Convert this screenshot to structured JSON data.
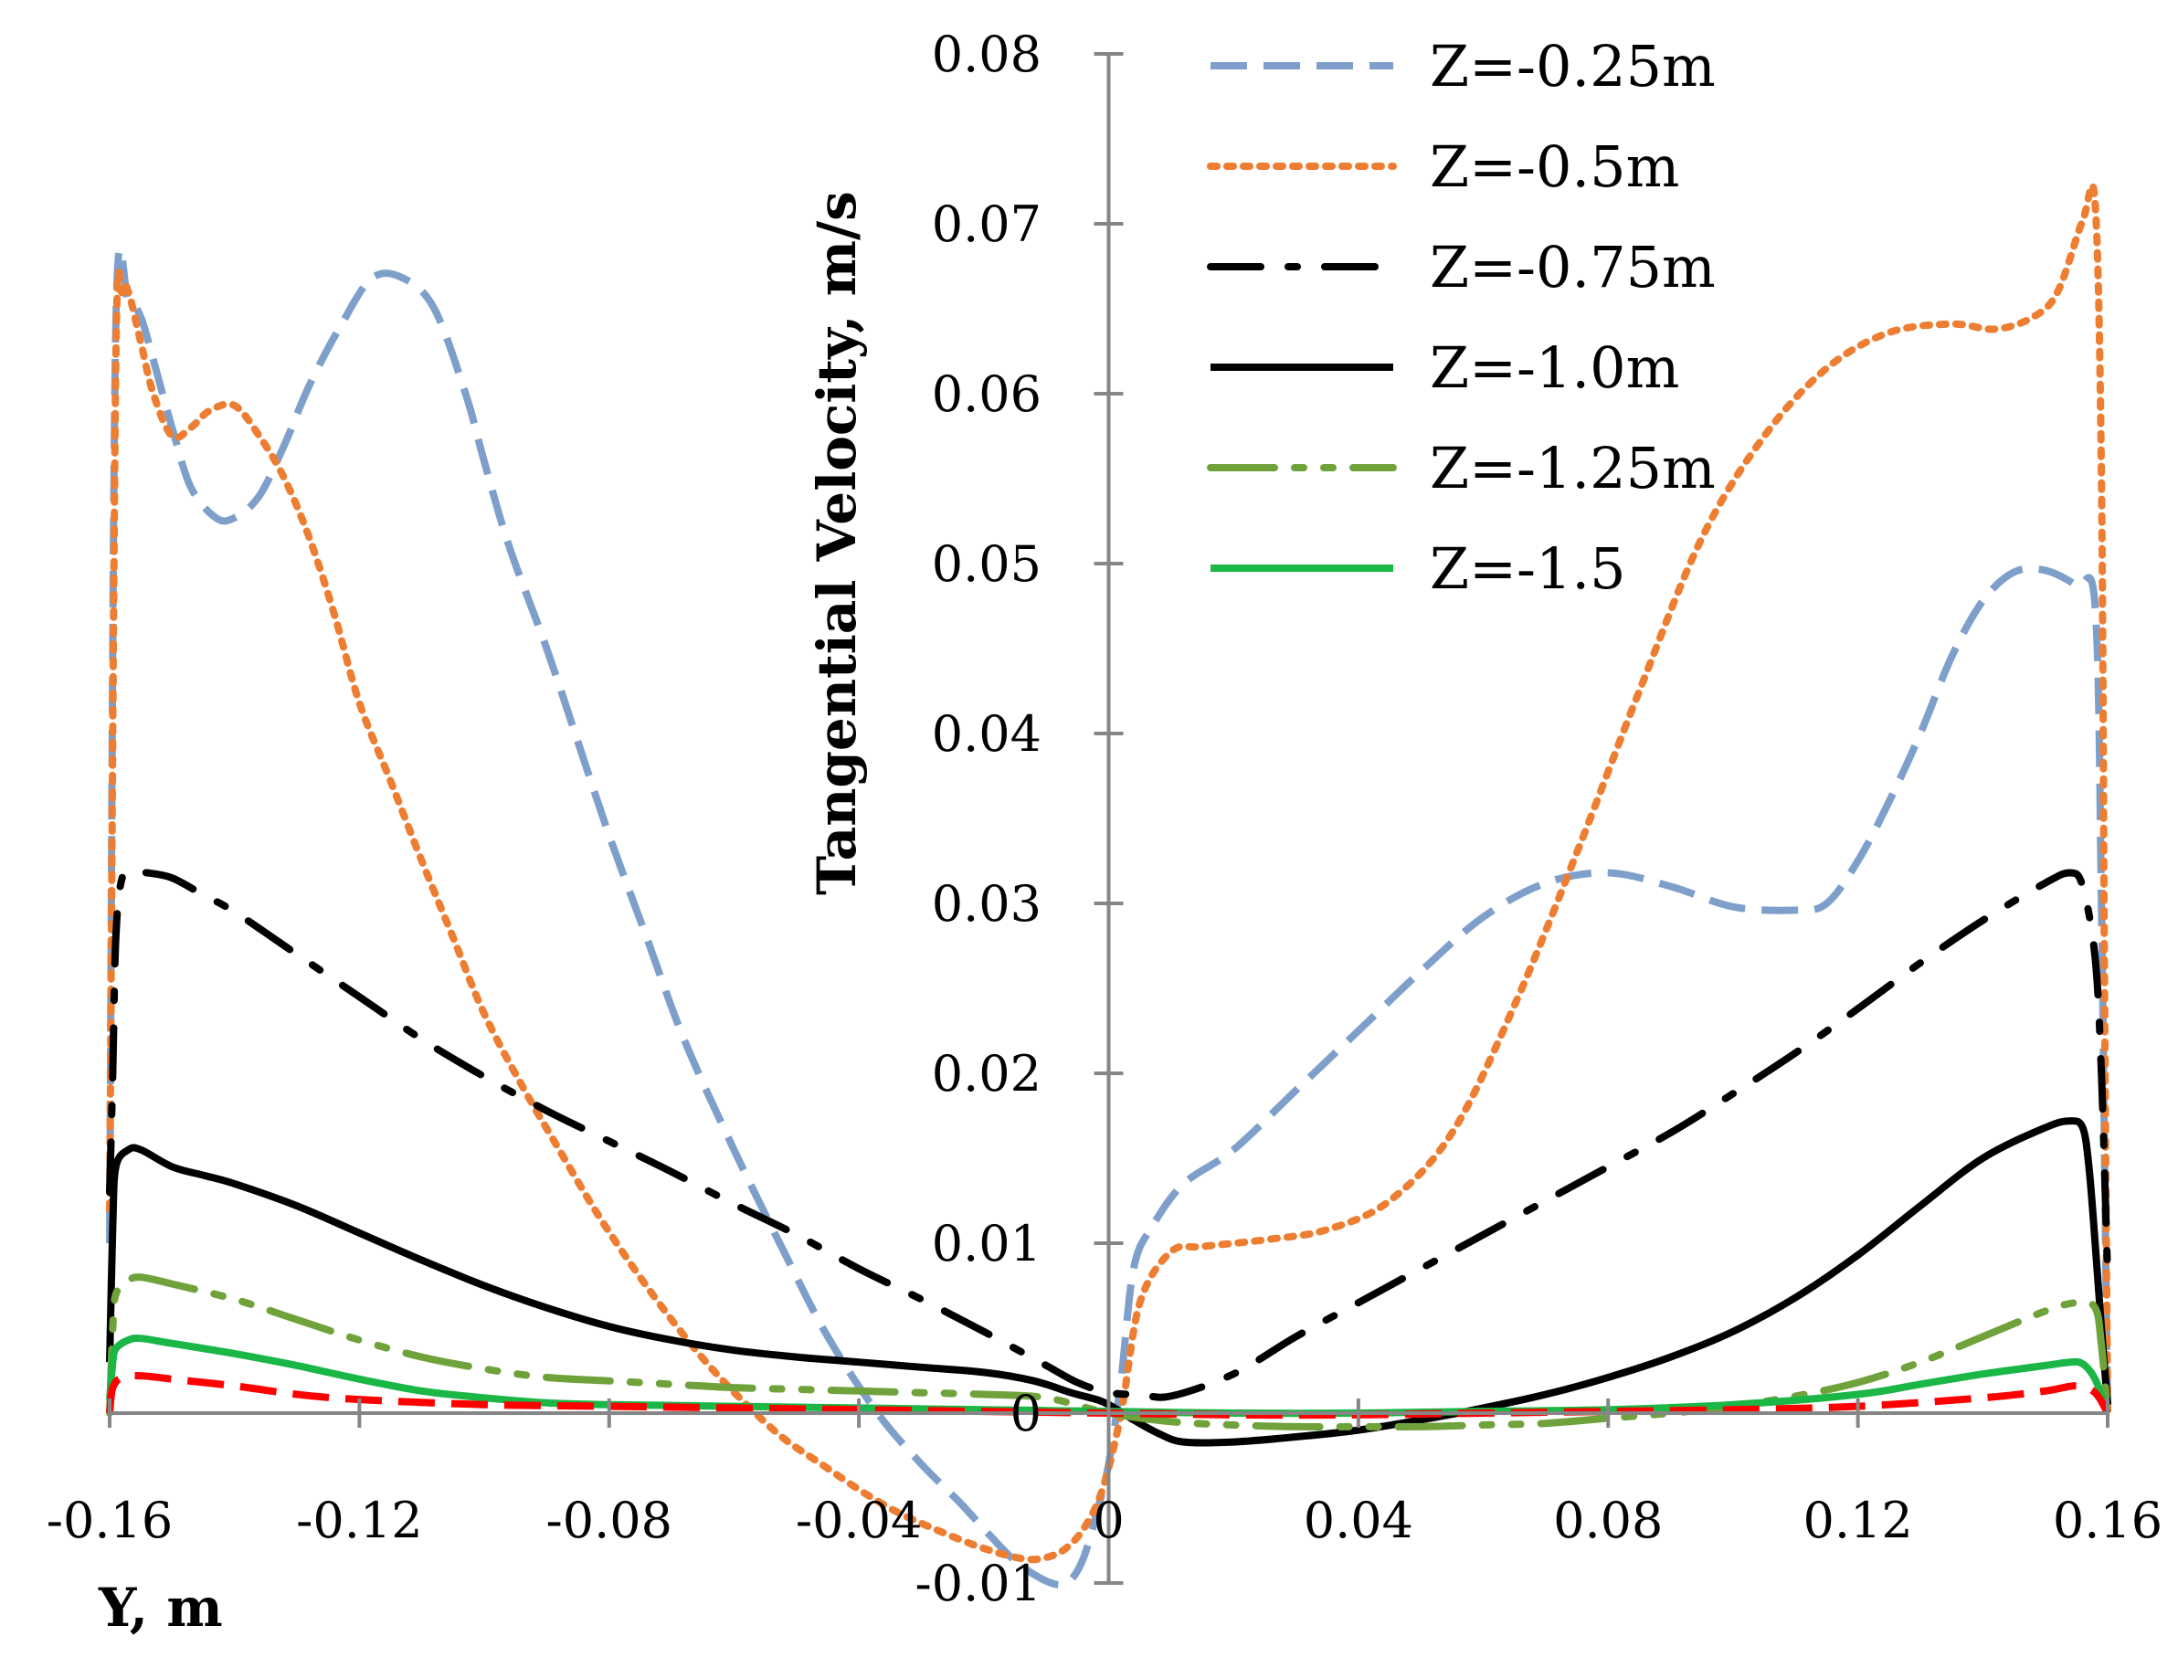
{
  "chart_data": {
    "type": "line",
    "title": "",
    "xlabel": "Y, m",
    "ylabel": "Tangential Velocity, m/s",
    "xlim": [
      -0.16,
      0.16
    ],
    "ylim": [
      -0.01,
      0.08
    ],
    "x_ticks": [
      "-0.16",
      "-0.12",
      "-0.08",
      "-0.04",
      "0",
      "0.04",
      "0.08",
      "0.12",
      "0.16"
    ],
    "y_ticks": [
      "0.08",
      "0.07",
      "0.06",
      "0.05",
      "0.04",
      "0.03",
      "0.02",
      "0.01",
      "0",
      "-0.01"
    ],
    "legend_position": "top-right",
    "series": [
      {
        "name": "Z=-0.25m",
        "color": "#7F9FCB",
        "dash": "dashed",
        "x": [
          -0.16,
          -0.159,
          -0.157,
          -0.155,
          -0.153,
          -0.15,
          -0.147,
          -0.143,
          -0.14,
          -0.136,
          -0.132,
          -0.128,
          -0.123,
          -0.118,
          -0.113,
          -0.108,
          -0.103,
          -0.1,
          -0.096,
          -0.09,
          -0.085,
          -0.08,
          -0.074,
          -0.068,
          -0.06,
          -0.052,
          -0.045,
          -0.037,
          -0.03,
          -0.024,
          -0.019,
          -0.015,
          -0.011,
          -0.008,
          -0.006,
          -0.004,
          -0.002,
          0,
          0.002,
          0.004,
          0.007,
          0.012,
          0.02,
          0.03,
          0.04,
          0.05,
          0.06,
          0.07,
          0.08,
          0.09,
          0.1,
          0.11,
          0.115,
          0.12,
          0.125,
          0.13,
          0.135,
          0.14,
          0.145,
          0.15,
          0.155,
          0.158,
          0.159,
          0.1595,
          0.16
        ],
        "y": [
          0.01,
          0.064,
          0.0655,
          0.0645,
          0.062,
          0.058,
          0.0545,
          0.0527,
          0.0527,
          0.054,
          0.057,
          0.0605,
          0.064,
          0.0668,
          0.0668,
          0.065,
          0.06,
          0.056,
          0.051,
          0.045,
          0.0395,
          0.034,
          0.028,
          0.022,
          0.0155,
          0.0095,
          0.0045,
          0.0,
          -0.003,
          -0.0052,
          -0.0072,
          -0.0087,
          -0.0097,
          -0.0101,
          -0.0098,
          -0.0085,
          -0.006,
          -0.003,
          0.002,
          0.0085,
          0.011,
          0.0135,
          0.0155,
          0.019,
          0.0225,
          0.026,
          0.0292,
          0.0312,
          0.0318,
          0.031,
          0.0298,
          0.0296,
          0.03,
          0.0325,
          0.036,
          0.04,
          0.0445,
          0.0478,
          0.0495,
          0.0496,
          0.0487,
          0.0475,
          0.03,
          0.015,
          0.0
        ]
      },
      {
        "name": "Z=-0.5m",
        "color": "#ED7D31",
        "dash": "dotted",
        "x": [
          -0.16,
          -0.159,
          -0.158,
          -0.157,
          -0.155,
          -0.153,
          -0.15,
          -0.147,
          -0.144,
          -0.14,
          -0.136,
          -0.132,
          -0.128,
          -0.124,
          -0.12,
          -0.115,
          -0.11,
          -0.105,
          -0.1,
          -0.094,
          -0.088,
          -0.082,
          -0.076,
          -0.07,
          -0.064,
          -0.058,
          -0.052,
          -0.046,
          -0.04,
          -0.034,
          -0.028,
          -0.022,
          -0.017,
          -0.013,
          -0.01,
          -0.007,
          -0.004,
          -0.001,
          0.002,
          0.005,
          0.01,
          0.015,
          0.025,
          0.035,
          0.045,
          0.055,
          0.065,
          0.075,
          0.085,
          0.095,
          0.105,
          0.115,
          0.125,
          0.135,
          0.142,
          0.148,
          0.152,
          0.156,
          0.158,
          0.159,
          0.1595,
          0.16
        ],
        "y": [
          0.012,
          0.062,
          0.066,
          0.066,
          0.063,
          0.06,
          0.0575,
          0.058,
          0.059,
          0.0593,
          0.0575,
          0.055,
          0.0515,
          0.047,
          0.0418,
          0.0372,
          0.0325,
          0.028,
          0.0235,
          0.0193,
          0.0155,
          0.0118,
          0.0085,
          0.0055,
          0.0028,
          0.0005,
          -0.0015,
          -0.003,
          -0.0045,
          -0.0058,
          -0.0068,
          -0.0077,
          -0.0083,
          -0.0086,
          -0.0085,
          -0.008,
          -0.0068,
          -0.0045,
          0.0,
          0.0065,
          0.0095,
          0.0098,
          0.0102,
          0.0108,
          0.0125,
          0.0165,
          0.024,
          0.033,
          0.0425,
          0.0515,
          0.0575,
          0.0615,
          0.0636,
          0.0641,
          0.0638,
          0.0645,
          0.066,
          0.0702,
          0.0712,
          0.055,
          0.025,
          0.0
        ]
      },
      {
        "name": "Z=-0.75m",
        "color": "#000000",
        "dash": "dash-dot",
        "x": [
          -0.16,
          -0.1595,
          -0.159,
          -0.158,
          -0.156,
          -0.154,
          -0.15,
          -0.145,
          -0.14,
          -0.13,
          -0.12,
          -0.11,
          -0.1,
          -0.09,
          -0.08,
          -0.07,
          -0.06,
          -0.05,
          -0.04,
          -0.03,
          -0.02,
          -0.01,
          -0.005,
          0,
          0.005,
          0.01,
          0.02,
          0.03,
          0.04,
          0.05,
          0.06,
          0.07,
          0.08,
          0.09,
          0.1,
          0.11,
          0.12,
          0.13,
          0.14,
          0.15,
          0.154,
          0.156,
          0.158,
          0.159,
          0.16
        ],
        "y": [
          0.013,
          0.02,
          0.028,
          0.0315,
          0.0318,
          0.0318,
          0.0315,
          0.0305,
          0.0295,
          0.027,
          0.0245,
          0.022,
          0.0198,
          0.0178,
          0.016,
          0.0142,
          0.0123,
          0.0105,
          0.0085,
          0.0067,
          0.0048,
          0.0028,
          0.0018,
          0.0012,
          0.0011,
          0.001,
          0.0023,
          0.0045,
          0.0065,
          0.0085,
          0.0105,
          0.0125,
          0.0145,
          0.0165,
          0.0188,
          0.0212,
          0.0238,
          0.0265,
          0.029,
          0.0312,
          0.0318,
          0.031,
          0.0268,
          0.02,
          0.008
        ]
      },
      {
        "name": "Z=-1.0m",
        "color": "#000000",
        "dash": "solid",
        "x": [
          -0.16,
          -0.1595,
          -0.159,
          -0.157,
          -0.155,
          -0.15,
          -0.145,
          -0.14,
          -0.13,
          -0.12,
          -0.11,
          -0.1,
          -0.09,
          -0.08,
          -0.07,
          -0.06,
          -0.05,
          -0.04,
          -0.03,
          -0.02,
          -0.012,
          -0.006,
          -0.002,
          0,
          0.004,
          0.008,
          0.012,
          0.02,
          0.03,
          0.04,
          0.05,
          0.06,
          0.07,
          0.08,
          0.09,
          0.1,
          0.11,
          0.12,
          0.13,
          0.14,
          0.15,
          0.154,
          0.156,
          0.157,
          0.158,
          0.159,
          0.16
        ],
        "y": [
          0.003,
          0.011,
          0.0145,
          0.0155,
          0.0155,
          0.0145,
          0.014,
          0.0135,
          0.0122,
          0.0106,
          0.009,
          0.0075,
          0.0062,
          0.0051,
          0.0043,
          0.0037,
          0.0033,
          0.003,
          0.0027,
          0.0024,
          0.0019,
          0.0012,
          0.0008,
          0.0005,
          -0.0004,
          -0.0012,
          -0.0017,
          -0.0017,
          -0.0014,
          -0.001,
          -0.0004,
          0.0003,
          0.0011,
          0.0021,
          0.0033,
          0.0048,
          0.0068,
          0.0093,
          0.0122,
          0.015,
          0.0168,
          0.0172,
          0.0168,
          0.0145,
          0.01,
          0.005,
          0.0005
        ]
      },
      {
        "name": "Z=-1.25m",
        "color": "#70A23C",
        "dash": "long-dash-dot-dot",
        "x": [
          -0.16,
          -0.1595,
          -0.159,
          -0.157,
          -0.155,
          -0.15,
          -0.14,
          -0.13,
          -0.12,
          -0.11,
          -0.1,
          -0.09,
          -0.08,
          -0.07,
          -0.06,
          -0.05,
          -0.04,
          -0.03,
          -0.02,
          -0.01,
          0,
          0.01,
          0.02,
          0.03,
          0.04,
          0.05,
          0.06,
          0.07,
          0.08,
          0.09,
          0.1,
          0.11,
          0.12,
          0.13,
          0.14,
          0.15,
          0.155,
          0.158,
          0.159,
          0.16
        ],
        "y": [
          0.0,
          0.005,
          0.007,
          0.0078,
          0.008,
          0.0076,
          0.0067,
          0.0055,
          0.0043,
          0.0033,
          0.0026,
          0.0021,
          0.0019,
          0.0017,
          0.0015,
          0.0014,
          0.0013,
          0.0012,
          0.0011,
          0.0009,
          0.0,
          -0.0005,
          -0.0007,
          -0.0008,
          -0.0008,
          -0.0008,
          -0.0007,
          -0.0006,
          -0.0003,
          0.0,
          0.0004,
          0.001,
          0.0018,
          0.003,
          0.0045,
          0.006,
          0.0065,
          0.0062,
          0.004,
          0.0
        ]
      },
      {
        "name": "Z=-1.5",
        "color": "#1AB646",
        "dash": "solid",
        "x": [
          -0.16,
          -0.1595,
          -0.159,
          -0.157,
          -0.155,
          -0.15,
          -0.14,
          -0.13,
          -0.12,
          -0.11,
          -0.1,
          -0.09,
          -0.08,
          -0.06,
          -0.04,
          -0.02,
          0,
          0.02,
          0.04,
          0.06,
          0.08,
          0.1,
          0.12,
          0.13,
          0.14,
          0.15,
          0.154,
          0.156,
          0.158,
          0.16
        ],
        "y": [
          0.0008,
          0.003,
          0.0038,
          0.0043,
          0.0044,
          0.0041,
          0.0035,
          0.0028,
          0.002,
          0.0013,
          0.0009,
          0.0006,
          0.0005,
          0.0004,
          0.0003,
          0.0002,
          0.0001,
          0.0,
          0.0,
          0.0001,
          0.0002,
          0.0005,
          0.0011,
          0.0017,
          0.0023,
          0.0028,
          0.003,
          0.0029,
          0.002,
          0.0
        ]
      },
      {
        "name": "",
        "color": "#FF0000",
        "dash": "dashed",
        "x": [
          -0.16,
          -0.1595,
          -0.158,
          -0.155,
          -0.15,
          -0.14,
          -0.13,
          -0.12,
          -0.1,
          -0.08,
          -0.06,
          -0.04,
          -0.02,
          0,
          0.02,
          0.04,
          0.06,
          0.08,
          0.1,
          0.12,
          0.14,
          0.15,
          0.155,
          0.158,
          0.16
        ],
        "y": [
          0.0,
          0.0015,
          0.0021,
          0.0022,
          0.002,
          0.0016,
          0.0011,
          0.0008,
          0.0005,
          0.0004,
          0.0003,
          0.0002,
          0.0001,
          0.0,
          -0.0001,
          -0.0001,
          0.0,
          0.0001,
          0.0002,
          0.0004,
          0.0009,
          0.0013,
          0.0016,
          0.0012,
          0.0
        ]
      }
    ]
  }
}
